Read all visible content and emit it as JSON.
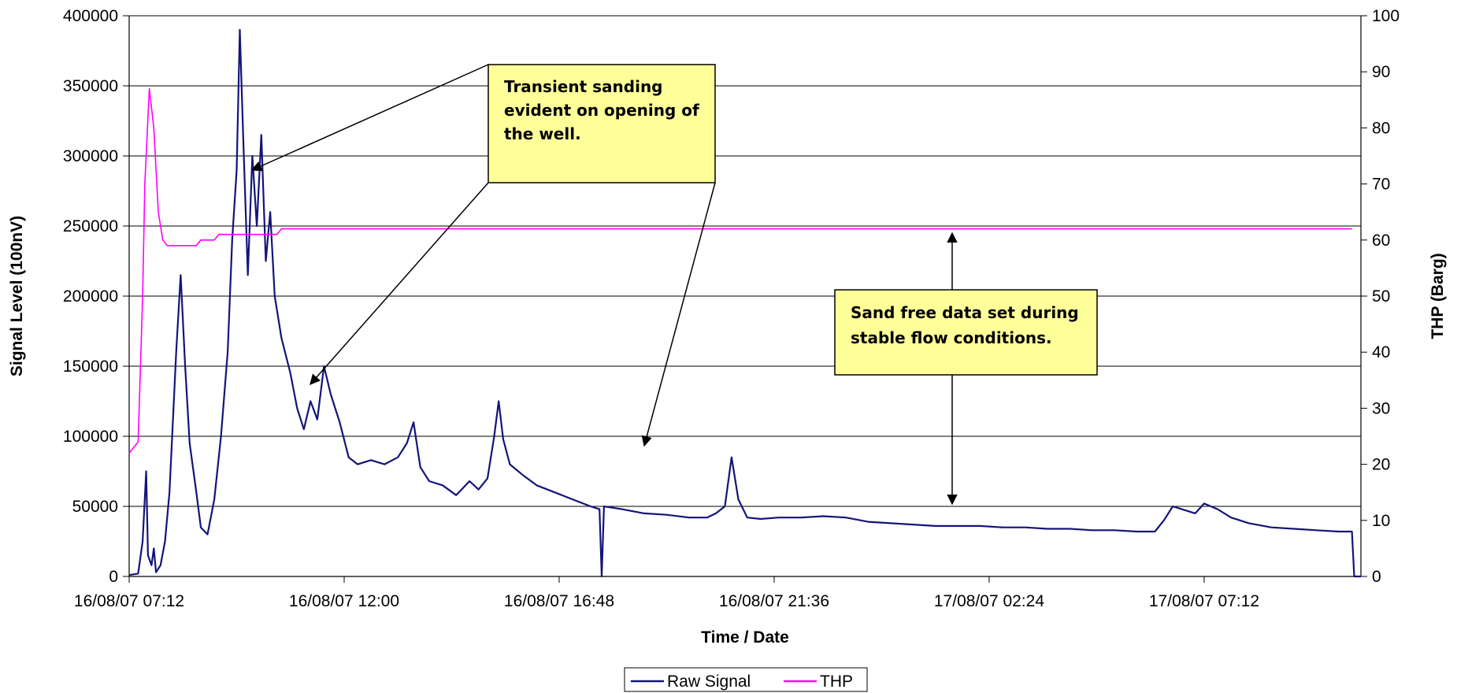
{
  "chart_data": {
    "type": "line",
    "xlabel": "Time / Date",
    "ylabel_left": "Signal Level (100nV)",
    "ylabel_right": "THP (Barg)",
    "x_tick_labels": [
      "16/08/07 07:12",
      "16/08/07 12:00",
      "16/08/07 16:48",
      "16/08/07 21:36",
      "17/08/07 02:24",
      "17/08/07 07:12"
    ],
    "y_left_ticks": [
      "0",
      "50000",
      "100000",
      "150000",
      "200000",
      "250000",
      "300000",
      "350000",
      "400000"
    ],
    "y_right_ticks": [
      "0",
      "10",
      "20",
      "30",
      "40",
      "50",
      "60",
      "70",
      "80",
      "90",
      "100"
    ],
    "ylim_left": [
      0,
      400000
    ],
    "ylim_right": [
      0,
      100
    ],
    "x_unit": "hours after 16/08/07 07:12",
    "xlim": [
      0,
      27.5
    ],
    "grid": "horizontal",
    "legend_position": "bottom",
    "series": [
      {
        "name": "Raw Signal",
        "axis": "left",
        "color": "#14147a",
        "points": [
          [
            0.0,
            1000
          ],
          [
            0.2,
            2000
          ],
          [
            0.3,
            25000
          ],
          [
            0.38,
            75000
          ],
          [
            0.42,
            15000
          ],
          [
            0.5,
            8000
          ],
          [
            0.55,
            20000
          ],
          [
            0.6,
            3000
          ],
          [
            0.7,
            8000
          ],
          [
            0.8,
            25000
          ],
          [
            0.9,
            60000
          ],
          [
            1.05,
            160000
          ],
          [
            1.15,
            215000
          ],
          [
            1.25,
            150000
          ],
          [
            1.35,
            95000
          ],
          [
            1.5,
            60000
          ],
          [
            1.6,
            35000
          ],
          [
            1.75,
            30000
          ],
          [
            1.9,
            55000
          ],
          [
            2.05,
            100000
          ],
          [
            2.2,
            160000
          ],
          [
            2.3,
            240000
          ],
          [
            2.4,
            290000
          ],
          [
            2.47,
            390000
          ],
          [
            2.55,
            310000
          ],
          [
            2.65,
            215000
          ],
          [
            2.75,
            300000
          ],
          [
            2.85,
            250000
          ],
          [
            2.95,
            315000
          ],
          [
            3.05,
            225000
          ],
          [
            3.15,
            260000
          ],
          [
            3.25,
            200000
          ],
          [
            3.4,
            170000
          ],
          [
            3.6,
            145000
          ],
          [
            3.75,
            120000
          ],
          [
            3.9,
            105000
          ],
          [
            4.05,
            125000
          ],
          [
            4.2,
            112000
          ],
          [
            4.35,
            150000
          ],
          [
            4.5,
            130000
          ],
          [
            4.7,
            110000
          ],
          [
            4.9,
            85000
          ],
          [
            5.1,
            80000
          ],
          [
            5.4,
            83000
          ],
          [
            5.7,
            80000
          ],
          [
            6.0,
            85000
          ],
          [
            6.2,
            95000
          ],
          [
            6.35,
            110000
          ],
          [
            6.5,
            78000
          ],
          [
            6.7,
            68000
          ],
          [
            7.0,
            65000
          ],
          [
            7.3,
            58000
          ],
          [
            7.6,
            68000
          ],
          [
            7.8,
            62000
          ],
          [
            8.0,
            70000
          ],
          [
            8.15,
            100000
          ],
          [
            8.25,
            125000
          ],
          [
            8.35,
            98000
          ],
          [
            8.5,
            80000
          ],
          [
            8.8,
            72000
          ],
          [
            9.1,
            65000
          ],
          [
            9.5,
            60000
          ],
          [
            9.9,
            55000
          ],
          [
            10.3,
            50000
          ],
          [
            10.5,
            48000
          ],
          [
            10.55,
            0
          ],
          [
            10.6,
            50000
          ],
          [
            11.0,
            48000
          ],
          [
            11.5,
            45000
          ],
          [
            12.0,
            44000
          ],
          [
            12.5,
            42000
          ],
          [
            12.9,
            42000
          ],
          [
            13.1,
            45000
          ],
          [
            13.3,
            50000
          ],
          [
            13.45,
            85000
          ],
          [
            13.6,
            55000
          ],
          [
            13.8,
            42000
          ],
          [
            14.1,
            41000
          ],
          [
            14.5,
            42000
          ],
          [
            15.0,
            42000
          ],
          [
            15.5,
            43000
          ],
          [
            16.0,
            42000
          ],
          [
            16.5,
            39000
          ],
          [
            17.0,
            38000
          ],
          [
            17.5,
            37000
          ],
          [
            18.0,
            36000
          ],
          [
            18.5,
            36000
          ],
          [
            19.0,
            36000
          ],
          [
            19.5,
            35000
          ],
          [
            20.0,
            35000
          ],
          [
            20.5,
            34000
          ],
          [
            21.0,
            34000
          ],
          [
            21.5,
            33000
          ],
          [
            22.0,
            33000
          ],
          [
            22.5,
            32000
          ],
          [
            22.9,
            32000
          ],
          [
            23.1,
            40000
          ],
          [
            23.3,
            50000
          ],
          [
            23.5,
            48000
          ],
          [
            23.8,
            45000
          ],
          [
            24.0,
            52000
          ],
          [
            24.3,
            48000
          ],
          [
            24.6,
            42000
          ],
          [
            25.0,
            38000
          ],
          [
            25.5,
            35000
          ],
          [
            26.0,
            34000
          ],
          [
            26.5,
            33000
          ],
          [
            27.0,
            32000
          ],
          [
            27.3,
            32000
          ],
          [
            27.35,
            0
          ],
          [
            27.5,
            0
          ]
        ]
      },
      {
        "name": "THP",
        "axis": "right",
        "color": "#ff00ff",
        "points": [
          [
            0.0,
            22
          ],
          [
            0.2,
            24
          ],
          [
            0.3,
            50
          ],
          [
            0.35,
            70
          ],
          [
            0.45,
            87
          ],
          [
            0.55,
            80
          ],
          [
            0.65,
            65
          ],
          [
            0.75,
            60
          ],
          [
            0.85,
            59
          ],
          [
            1.2,
            59
          ],
          [
            1.5,
            59
          ],
          [
            1.6,
            60
          ],
          [
            1.9,
            60
          ],
          [
            2.0,
            61
          ],
          [
            2.5,
            61
          ],
          [
            3.0,
            61
          ],
          [
            3.3,
            61
          ],
          [
            3.4,
            62
          ],
          [
            10.0,
            62
          ],
          [
            20.0,
            62
          ],
          [
            27.3,
            62
          ]
        ]
      }
    ],
    "annotations": [
      {
        "lines": [
          "Transient sanding",
          "evident on opening of",
          "the well."
        ]
      },
      {
        "lines": [
          "Sand free data set during",
          "stable flow conditions."
        ]
      }
    ]
  },
  "legend": {
    "raw_signal_label": "Raw Signal",
    "thp_label": "THP"
  }
}
